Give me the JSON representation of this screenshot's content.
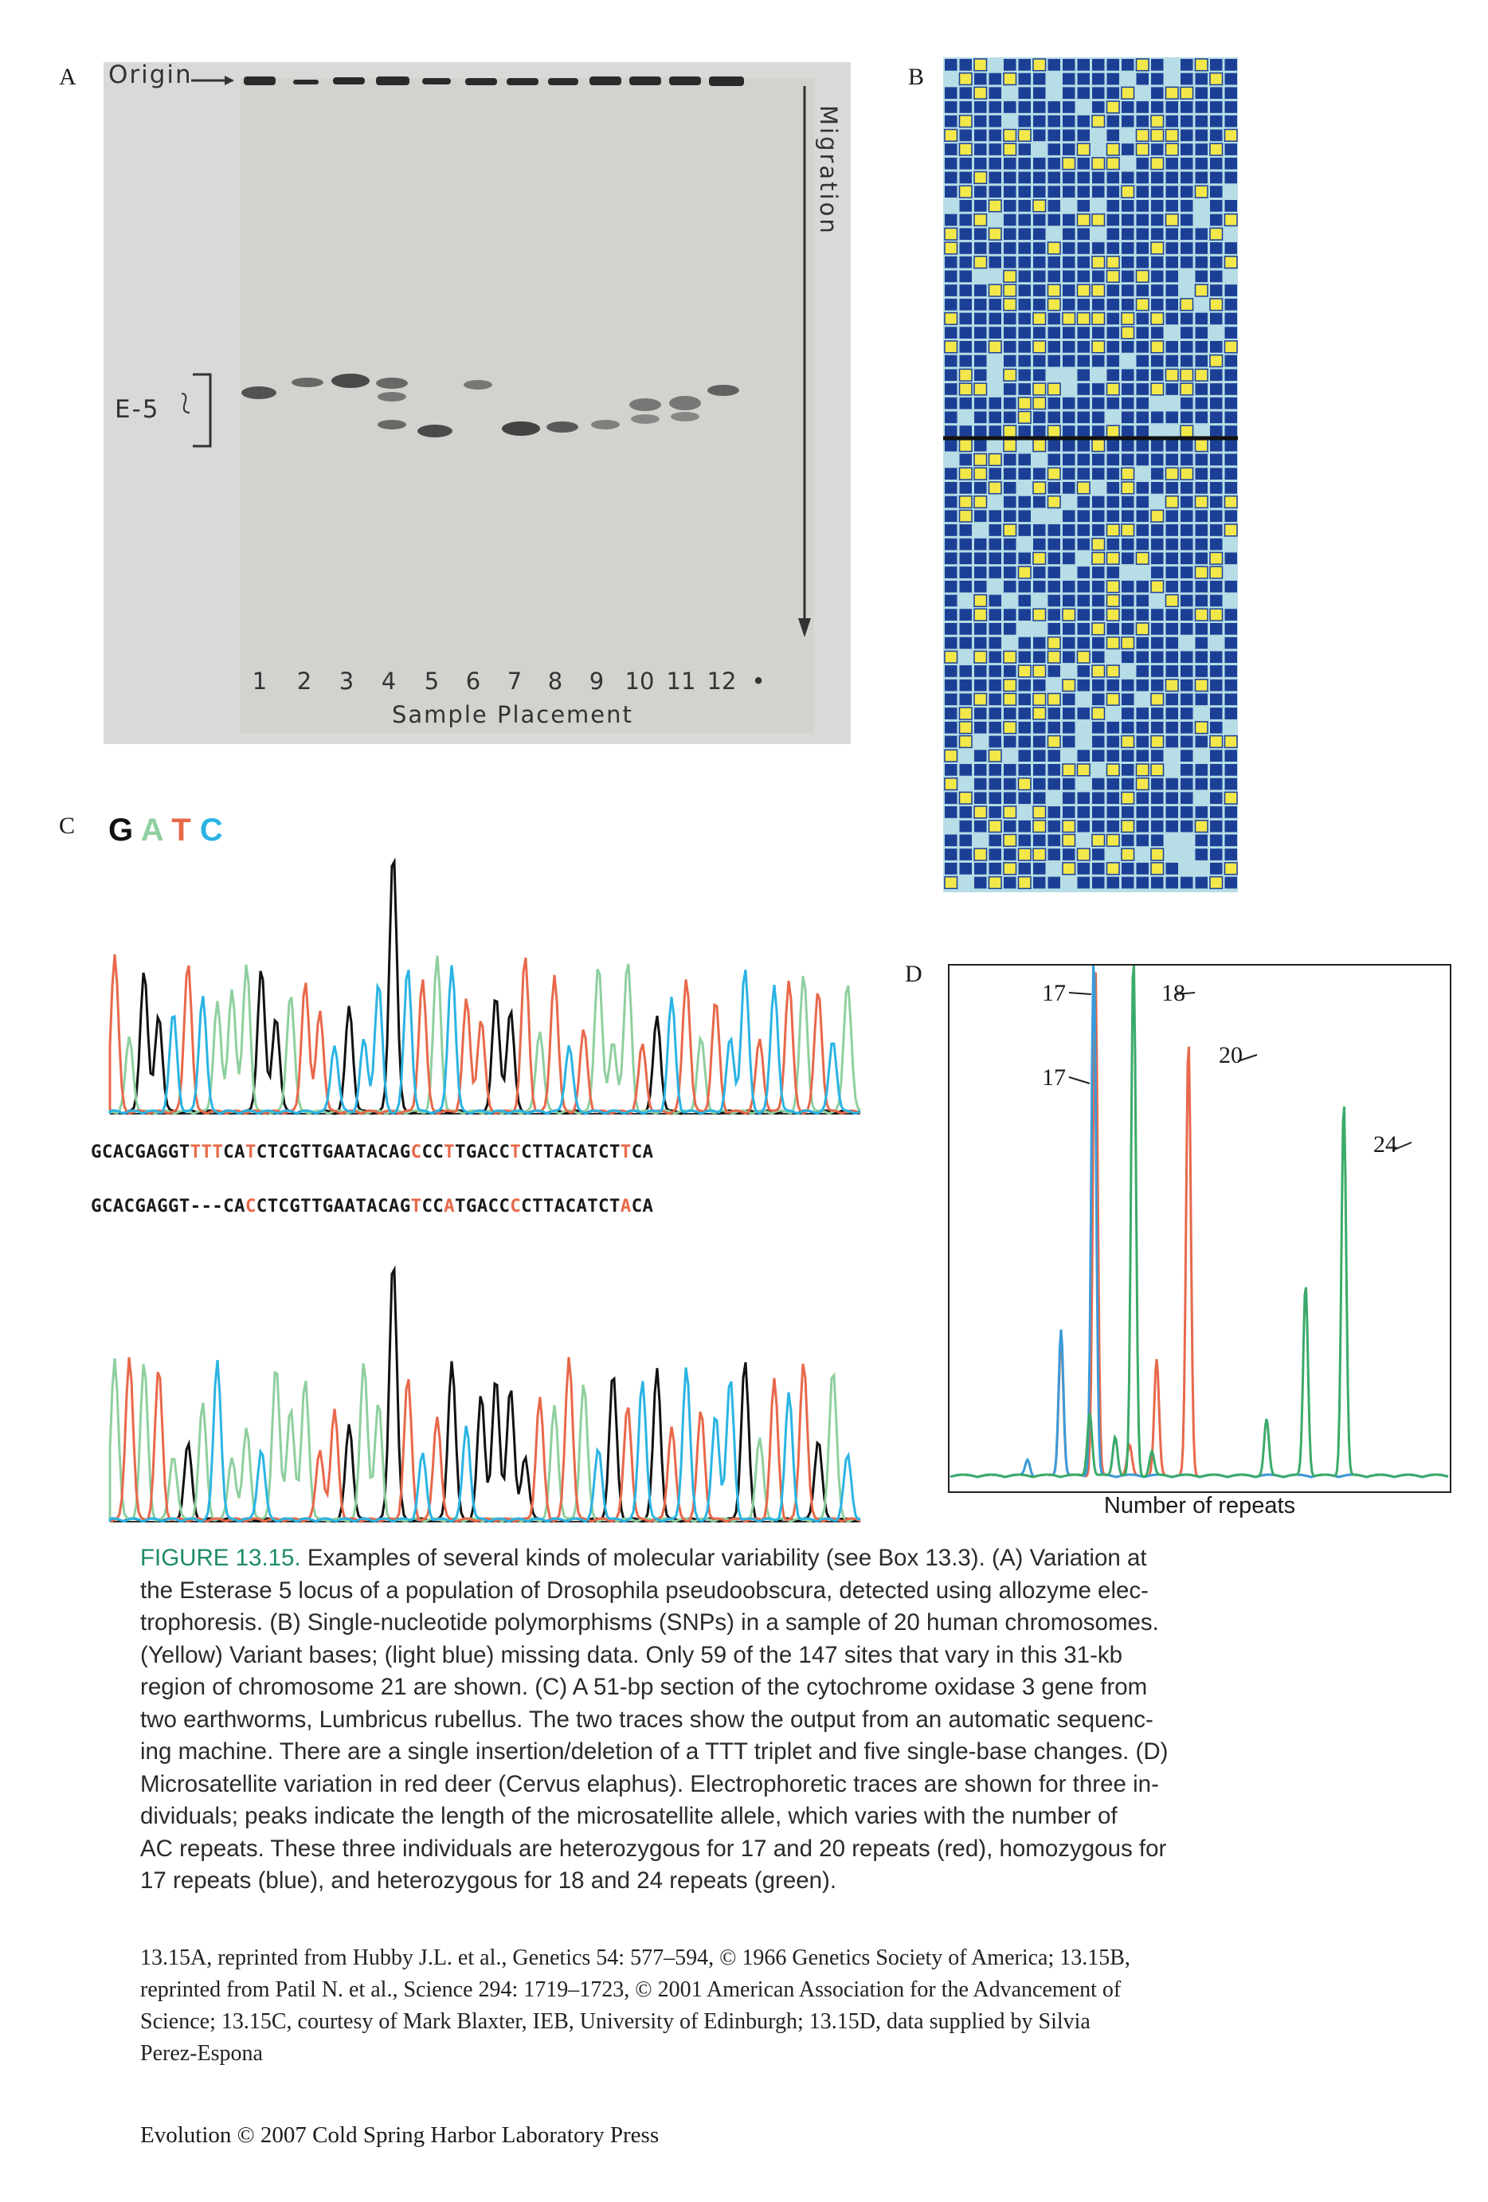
{
  "panels": {
    "a": {
      "letter": "A",
      "origin": "Origin",
      "migration": "Migration",
      "band_label": "E-5",
      "lanes": [
        "1",
        "2",
        "3",
        "4",
        "5",
        "6",
        "7",
        "8",
        "9",
        "10",
        "11",
        "12",
        "•"
      ],
      "axis_label": "Sample Placement"
    },
    "b": {
      "letter": "B"
    },
    "c": {
      "letter": "C",
      "legend": {
        "g": "G",
        "a": "A",
        "t": "T",
        "c": "C"
      },
      "seq1": [
        {
          "t": "GCACGAGGT",
          "h": false
        },
        {
          "t": "TTT",
          "h": true
        },
        {
          "t": "CA",
          "h": false
        },
        {
          "t": "T",
          "h": true
        },
        {
          "t": "CTCGTTGAATACAG",
          "h": false
        },
        {
          "t": "C",
          "h": true
        },
        {
          "t": "CC",
          "h": false
        },
        {
          "t": "T",
          "h": true
        },
        {
          "t": "TGACC",
          "h": false
        },
        {
          "t": "T",
          "h": true
        },
        {
          "t": "CTTACATCT",
          "h": false
        },
        {
          "t": "T",
          "h": true
        },
        {
          "t": "CA",
          "h": false
        }
      ],
      "seq2": [
        {
          "t": "GCACGAGGT---CA",
          "h": false
        },
        {
          "t": "C",
          "h": true
        },
        {
          "t": "CTCGTTGAATACAG",
          "h": false
        },
        {
          "t": "T",
          "h": true
        },
        {
          "t": "CC",
          "h": false
        },
        {
          "t": "A",
          "h": true
        },
        {
          "t": "TGACC",
          "h": false
        },
        {
          "t": "C",
          "h": true
        },
        {
          "t": "CTTACATCT",
          "h": false
        },
        {
          "t": "A",
          "h": true
        },
        {
          "t": "CA",
          "h": false
        }
      ]
    },
    "d": {
      "letter": "D",
      "labels": [
        "17",
        "18",
        "17",
        "20",
        "24"
      ],
      "xlabel": "Number of repeats"
    }
  },
  "colors": {
    "g": "#111111",
    "a": "#8fcf9f",
    "t": "#e8684a",
    "c": "#2ab4e3",
    "red": "#e8684a",
    "blue": "#3a9bd9",
    "green": "#3aaa6a",
    "snp_blue": "#1c3f96",
    "snp_yellow": "#f3e84a",
    "snp_missing": "#b7dde6"
  },
  "caption": {
    "fig_label": "FIGURE 13.15.",
    "lines": [
      "Examples of several kinds of molecular variability (see Box 13.3). (A) Variation at",
      "the Esterase 5 locus of a population of Drosophila pseudoobscura, detected using allozyme elec-",
      "trophoresis. (B) Single-nucleotide polymorphisms (SNPs) in a sample of 20 human chromosomes.",
      "(Yellow) Variant bases; (light blue) missing data. Only 59 of the 147 sites that vary in this 31-kb",
      "region of chromosome 21 are shown. (C) A 51-bp section of the cytochrome oxidase 3 gene from",
      "two earthworms, Lumbricus rubellus. The two traces show the output from an automatic sequenc-",
      "ing machine. There are a single insertion/deletion of a TTT triplet and five single-base changes. (D)",
      "Microsatellite variation in red deer (Cervus elaphus). Electrophoretic traces are shown for three in-",
      "dividuals; peaks indicate the length of the microsatellite allele, which varies with the number of",
      "AC repeats. These three individuals are heterozygous for 17 and 20 repeats (red), homozygous for",
      "17 repeats (blue), and heterozygous for 18 and 24 repeats (green)."
    ]
  },
  "credits": {
    "lines": [
      "13.15A, reprinted from Hubby J.L. et al., Genetics 54: 577–594, © 1966 Genetics Society of America; 13.15B,",
      "reprinted from Patil N. et al., Science 294: 1719–1723, © 2001 American Association for the Advancement of",
      "Science; 13.15C, courtesy of Mark Blaxter, IEB, University of Edinburgh; 13.15D, data supplied by Silvia",
      "Perez-Espona"
    ]
  },
  "footer": "Evolution © 2007 Cold Spring Harbor Laboratory Press"
}
